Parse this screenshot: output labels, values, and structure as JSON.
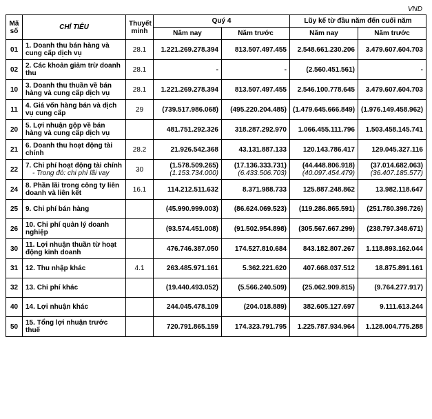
{
  "unit_label": "VND",
  "header": {
    "ma_so": "Mã số",
    "chi_tieu": "CHỈ TIÊU",
    "thuyet_minh": "Thuyết minh",
    "quy4": "Quý 4",
    "luyke": "Lũy kế từ đầu năm đến cuối năm",
    "nam_nay": "Năm nay",
    "nam_truoc": "Năm trước"
  },
  "rows": [
    {
      "ma": "01",
      "idx": "1.",
      "label": "Doanh thu bán hàng và cung cấp dịch vụ",
      "tm": "28.1",
      "q_nay": "1.221.269.278.394",
      "q_truoc": "813.507.497.455",
      "lk_nay": "2.548.661.230.206",
      "lk_truoc": "3.479.607.604.703"
    },
    {
      "ma": "02",
      "idx": "2.",
      "label": "Các khoản giảm trừ doanh thu",
      "tm": "28.1",
      "q_nay": "-",
      "q_truoc": "-",
      "lk_nay": "(2.560.451.561)",
      "lk_truoc": "-"
    },
    {
      "ma": "10",
      "idx": "3.",
      "label": "Doanh thu thuần về bán hàng và cung cấp dịch vụ",
      "tm": "28.1",
      "q_nay": "1.221.269.278.394",
      "q_truoc": "813.507.497.455",
      "lk_nay": "2.546.100.778.645",
      "lk_truoc": "3.479.607.604.703"
    },
    {
      "ma": "11",
      "idx": "4.",
      "label": "Giá vốn hàng bán và dịch vụ cung cấp",
      "tm": "29",
      "q_nay": "(739.517.986.068)",
      "q_truoc": "(495.220.204.485)",
      "lk_nay": "(1.479.645.666.849)",
      "lk_truoc": "(1.976.149.458.962)"
    },
    {
      "ma": "20",
      "idx": "5.",
      "label": "Lợi nhuận gộp về bán hàng và cung cấp dịch vụ",
      "tm": "",
      "q_nay": "481.751.292.326",
      "q_truoc": "318.287.292.970",
      "lk_nay": "1.066.455.111.796",
      "lk_truoc": "1.503.458.145.741"
    },
    {
      "ma": "21",
      "idx": "6.",
      "label": "Doanh thu hoạt động tài chính",
      "tm": "28.2",
      "q_nay": "21.926.542.368",
      "q_truoc": "43.131.887.133",
      "lk_nay": "120.143.786.417",
      "lk_truoc": "129.045.327.116"
    },
    {
      "ma": "22",
      "idx": "7.",
      "label": "Chi phí hoạt động tài chính",
      "tm": "30",
      "q_nay": "(1.578.509.265)",
      "q_truoc": "(17.136.333.731)",
      "lk_nay": "(44.448.806.918)",
      "lk_truoc": "(37.014.682.063)",
      "sub_label": "Trong đó: chi phí lãi vay",
      "sub_q_nay": "(1.153.734.000)",
      "sub_q_truoc": "(6.433.506.703)",
      "sub_lk_nay": "(40.097.454.479)",
      "sub_lk_truoc": "(36.407.185.577)"
    },
    {
      "ma": "24",
      "idx": "8.",
      "label": "Phần lãi trong công ty liên doanh và liên kết",
      "tm": "16.1",
      "q_nay": "114.212.511.632",
      "q_truoc": "8.371.988.733",
      "lk_nay": "125.887.248.862",
      "lk_truoc": "13.982.118.647"
    },
    {
      "ma": "25",
      "idx": "9.",
      "label": "Chi phí bán hàng",
      "tm": "",
      "q_nay": "(45.990.999.003)",
      "q_truoc": "(86.624.069.523)",
      "lk_nay": "(119.286.865.591)",
      "lk_truoc": "(251.780.398.726)"
    },
    {
      "ma": "26",
      "idx": "10.",
      "label": "Chi phí quản lý doanh nghiệp",
      "tm": "",
      "q_nay": "(93.574.451.008)",
      "q_truoc": "(91.502.954.898)",
      "lk_nay": "(305.567.667.299)",
      "lk_truoc": "(238.797.348.671)"
    },
    {
      "ma": "30",
      "idx": "11.",
      "label": "Lợi nhuận thuần từ hoạt động kinh doanh",
      "tm": "",
      "q_nay": "476.746.387.050",
      "q_truoc": "174.527.810.684",
      "lk_nay": "843.182.807.267",
      "lk_truoc": "1.118.893.162.044"
    },
    {
      "ma": "31",
      "idx": "12.",
      "label": "Thu nhập khác",
      "tm": "4.1",
      "q_nay": "263.485.971.161",
      "q_truoc": "5.362.221.620",
      "lk_nay": "407.668.037.512",
      "lk_truoc": "18.875.891.161"
    },
    {
      "ma": "32",
      "idx": "13.",
      "label": "Chi phí khác",
      "tm": "",
      "q_nay": "(19.440.493.052)",
      "q_truoc": "(5.566.240.509)",
      "lk_nay": "(25.062.909.815)",
      "lk_truoc": "(9.764.277.917)"
    },
    {
      "ma": "40",
      "idx": "14.",
      "label": "Lợi nhuận khác",
      "tm": "",
      "q_nay": "244.045.478.109",
      "q_truoc": "(204.018.889)",
      "lk_nay": "382.605.127.697",
      "lk_truoc": "9.111.613.244"
    },
    {
      "ma": "50",
      "idx": "15.",
      "label": "Tổng lợi nhuận trước thuế",
      "tm": "",
      "q_nay": "720.791.865.159",
      "q_truoc": "174.323.791.795",
      "lk_nay": "1.225.787.934.964",
      "lk_truoc": "1.128.004.775.288"
    }
  ],
  "style": {
    "font_size_body": 10,
    "border_color": "#000000",
    "background": "#ffffff"
  }
}
